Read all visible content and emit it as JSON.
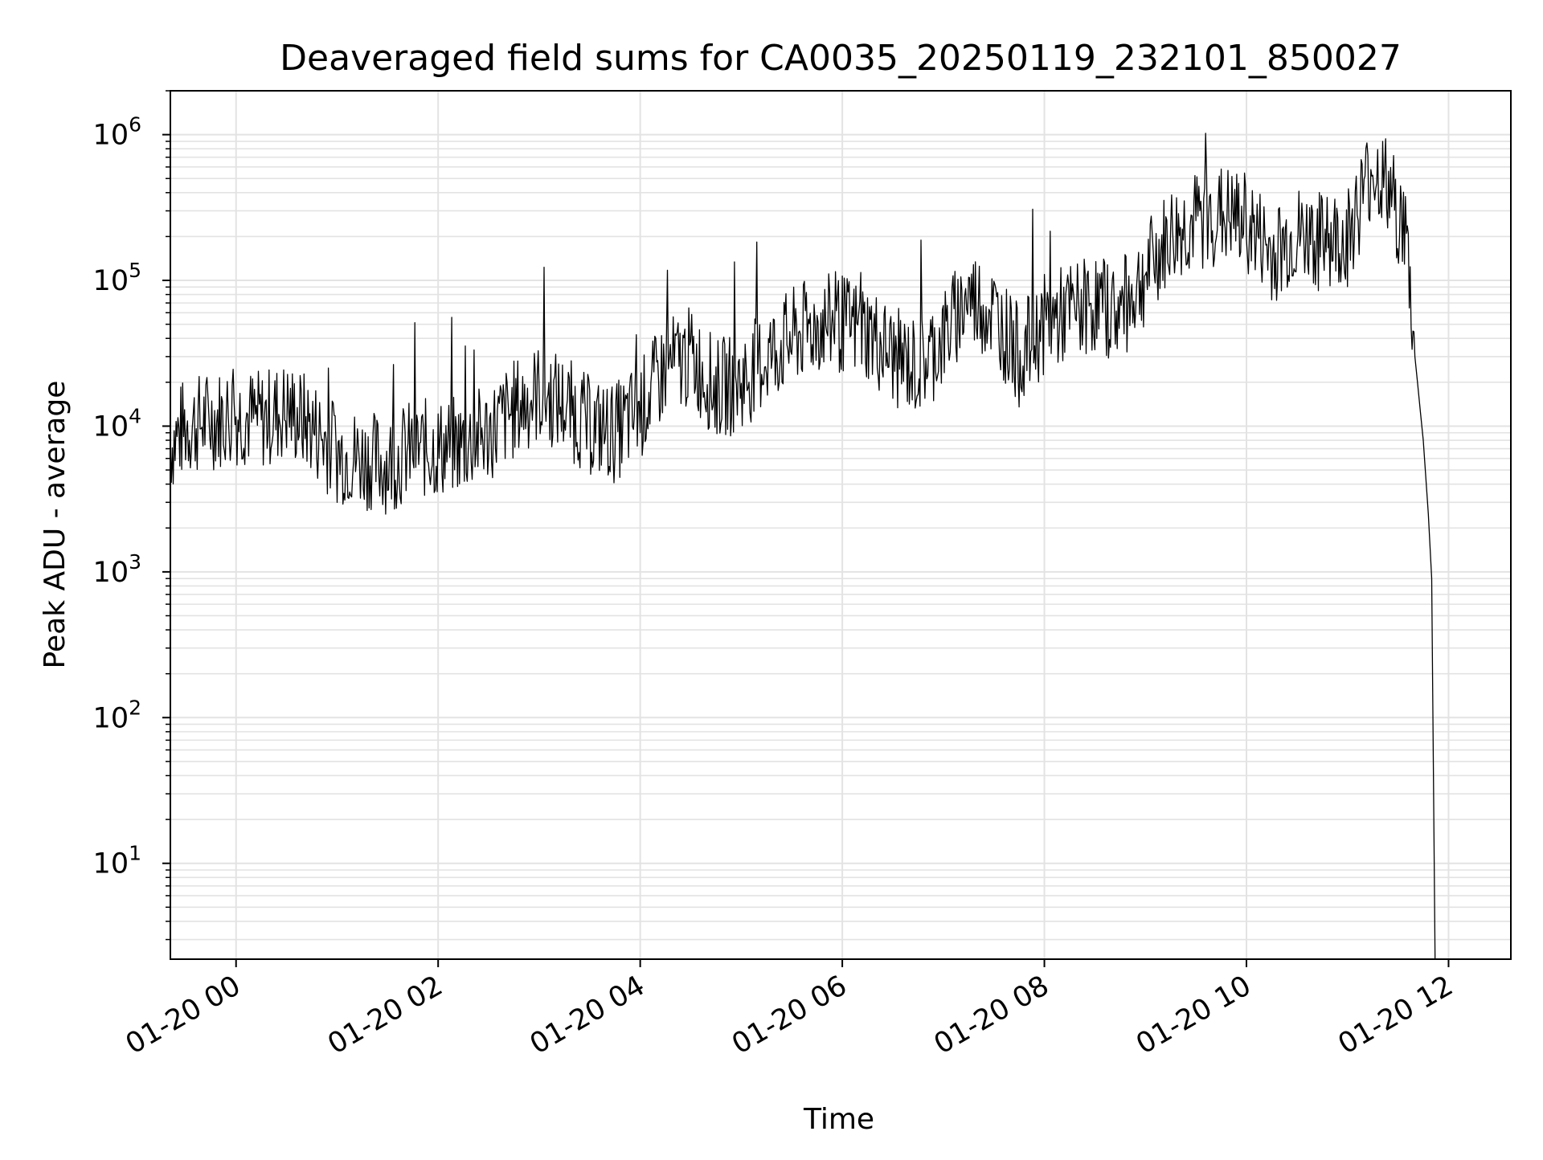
{
  "chart_data": {
    "type": "line",
    "title": "Deaveraged field sums for CA0035_20250119_232101_850027",
    "xlabel": "Time",
    "ylabel": "Peak ADU - average",
    "y_scale": "log",
    "ylim": [
      2.2,
      2000000
    ],
    "xlim": [
      "01-19 23:21",
      "01-20 12:37"
    ],
    "x_tick_labels": [
      "01-20 00",
      "01-20 02",
      "01-20 04",
      "01-20 06",
      "01-20 08",
      "01-20 10",
      "01-20 12"
    ],
    "x_tick_times": [
      "01-20 00:00",
      "01-20 02:00",
      "01-20 04:00",
      "01-20 06:00",
      "01-20 08:00",
      "01-20 10:00",
      "01-20 12:00"
    ],
    "y_tick_labels": [
      {
        "base": "10",
        "exp": "1",
        "value": 10
      },
      {
        "base": "10",
        "exp": "2",
        "value": 100
      },
      {
        "base": "10",
        "exp": "3",
        "value": 1000
      },
      {
        "base": "10",
        "exp": "4",
        "value": 10000
      },
      {
        "base": "10",
        "exp": "5",
        "value": 100000
      },
      {
        "base": "10",
        "exp": "6",
        "value": 1000000
      }
    ],
    "grid": true,
    "line_color": "#000000",
    "grid_color": "#e3e3e3",
    "series": [
      {
        "x": [
          "01-19 23:21",
          "01-19 23:30",
          "01-19 23:45",
          "01-20 00:00",
          "01-20 00:15",
          "01-20 00:30",
          "01-20 00:45",
          "01-20 01:00",
          "01-20 01:15",
          "01-20 01:30",
          "01-20 01:45",
          "01-20 02:00",
          "01-20 02:15",
          "01-20 02:30",
          "01-20 02:45",
          "01-20 03:00",
          "01-20 03:15",
          "01-20 03:30",
          "01-20 03:45",
          "01-20 04:00",
          "01-20 04:15",
          "01-20 04:30",
          "01-20 04:45",
          "01-20 05:00",
          "01-20 05:15",
          "01-20 05:30",
          "01-20 05:45",
          "01-20 06:00",
          "01-20 06:15",
          "01-20 06:30",
          "01-20 06:45",
          "01-20 07:00",
          "01-20 07:15",
          "01-20 07:30",
          "01-20 07:45",
          "01-20 08:00",
          "01-20 08:15",
          "01-20 08:30",
          "01-20 08:45",
          "01-20 09:00",
          "01-20 09:15",
          "01-20 09:30",
          "01-20 09:45",
          "01-20 10:00",
          "01-20 10:15",
          "01-20 10:30",
          "01-20 10:45",
          "01-20 11:00",
          "01-20 11:15",
          "01-20 11:25",
          "01-20 11:35",
          "01-20 11:40",
          "01-20 11:45",
          "01-20 11:48",
          "01-20 11:50",
          "01-20 11:52"
        ],
        "y": [
          7500,
          10000,
          11000,
          12000,
          11000,
          13000,
          10000,
          6500,
          6000,
          5500,
          7000,
          7000,
          7500,
          9000,
          13000,
          17000,
          14000,
          10000,
          9000,
          13000,
          25000,
          30000,
          18000,
          20000,
          30000,
          40000,
          50000,
          50000,
          45000,
          30000,
          25000,
          40000,
          80000,
          60000,
          30000,
          50000,
          60000,
          70000,
          60000,
          110000,
          200000,
          250000,
          280000,
          250000,
          150000,
          200000,
          180000,
          200000,
          600000,
          400000,
          200000,
          30000,
          8000,
          2500,
          900,
          2.2
        ]
      }
    ]
  }
}
